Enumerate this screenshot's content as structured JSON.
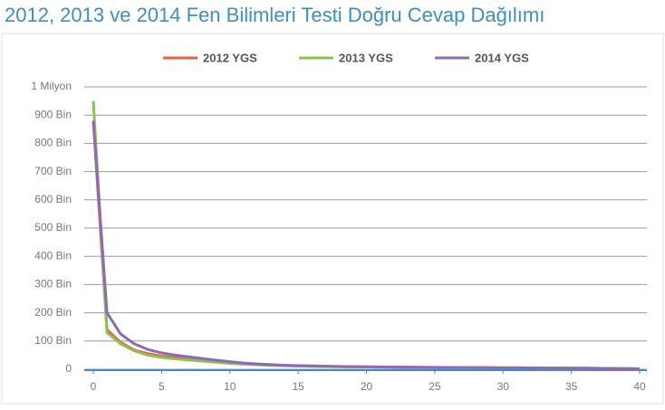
{
  "chart_data": {
    "type": "line",
    "title": "2012, 2013 ve 2014 Fen Bilimleri Testi Doğru Cevap Dağılımı",
    "x": [
      0,
      1,
      2,
      3,
      4,
      5,
      6,
      7,
      8,
      9,
      10,
      11,
      12,
      13,
      14,
      15,
      16,
      17,
      18,
      19,
      20,
      21,
      22,
      23,
      24,
      25,
      26,
      27,
      28,
      29,
      30,
      31,
      32,
      33,
      34,
      35,
      36,
      37,
      38,
      39,
      40
    ],
    "series": [
      {
        "name": "2012 YGS",
        "color": "#e8603c",
        "values": [
          880000,
          140000,
          95000,
          68000,
          55000,
          47000,
          41000,
          36000,
          32000,
          28000,
          24000,
          20000,
          17000,
          15000,
          13000,
          12000,
          11000,
          10000,
          9500,
          9000,
          8500,
          8000,
          7500,
          7000,
          6800,
          6500,
          6200,
          6000,
          5800,
          5600,
          5400,
          5200,
          5000,
          4800,
          4500,
          4200,
          4000,
          3500,
          3000,
          2500,
          2000
        ]
      },
      {
        "name": "2013 YGS",
        "color": "#8cc152",
        "values": [
          950000,
          130000,
          90000,
          65000,
          50000,
          42000,
          37000,
          33000,
          29000,
          25000,
          21000,
          18000,
          16000,
          14000,
          12500,
          11500,
          10500,
          9500,
          9000,
          8500,
          8000,
          7500,
          7000,
          6700,
          6400,
          6100,
          5900,
          5700,
          5500,
          5300,
          5100,
          4900,
          4700,
          4500,
          4200,
          3900,
          3600,
          3200,
          2800,
          2300,
          1800
        ]
      },
      {
        "name": "2014 YGS",
        "color": "#8a6bb5",
        "values": [
          880000,
          200000,
          125000,
          90000,
          70000,
          58000,
          50000,
          44000,
          38000,
          32000,
          27000,
          22000,
          19000,
          16500,
          14500,
          13000,
          12000,
          11000,
          10000,
          9500,
          9000,
          8500,
          8000,
          7600,
          7200,
          6900,
          6600,
          6300,
          6000,
          5700,
          5400,
          5100,
          4800,
          4500,
          4200,
          3900,
          3500,
          3100,
          2700,
          2200,
          1700
        ]
      }
    ],
    "xlim": [
      0,
      40
    ],
    "xticks": [
      0,
      5,
      10,
      15,
      20,
      25,
      30,
      35,
      40
    ],
    "ylim": [
      0,
      1000000
    ],
    "yticks": [
      0,
      {
        "value": 100000,
        "label": "100 Bin"
      },
      {
        "value": 200000,
        "label": "200 Bin"
      },
      {
        "value": 300000,
        "label": "300 Bin"
      },
      {
        "value": 400000,
        "label": "400 Bin"
      },
      {
        "value": 500000,
        "label": "500 Bin"
      },
      {
        "value": 600000,
        "label": "600 Bin"
      },
      {
        "value": 700000,
        "label": "700 Bin"
      },
      {
        "value": 800000,
        "label": "800 Bin"
      },
      {
        "value": 900000,
        "label": "900 Bin"
      },
      {
        "value": 1000000,
        "label": "1 Milyon"
      }
    ],
    "grid": true
  }
}
